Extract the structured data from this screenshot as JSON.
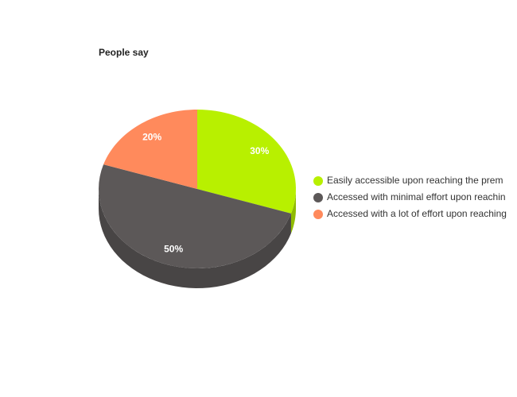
{
  "chart_data": {
    "type": "pie",
    "title": "People say",
    "categories": [
      "Easily accessible upon reaching the prem",
      "Accessed with minimal effort upon reachin",
      "Accessed with a lot of effort upon reaching"
    ],
    "values": [
      30,
      50,
      20
    ],
    "value_labels": [
      "30%",
      "50%",
      "20%"
    ],
    "colors": [
      "#b8f000",
      "#5c5858",
      "#ff8a5c"
    ],
    "legend": "right"
  }
}
